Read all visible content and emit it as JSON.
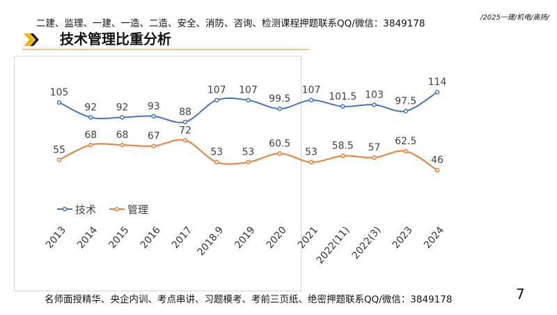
{
  "header": {
    "text": "二建、监理、一建、一造、二造、安全、消防、咨询、检测课程押题联系QQ/微信：3849178",
    "tag": "/2025一建/机电/高扬/"
  },
  "title": "技术管理比重分析",
  "footer": {
    "text": "名师面授精华、央企内训、考点串讲、习题模考、考前三页纸、绝密押题联系QQ/微信：3849178",
    "page_number": "7"
  },
  "chart_data": {
    "type": "line",
    "categories": [
      "2013",
      "2014",
      "2015",
      "2016",
      "2017",
      "2018.9",
      "2019",
      "2020",
      "2021",
      "2022(11)",
      "2022(3)",
      "2023",
      "2024"
    ],
    "series": [
      {
        "name": "技术",
        "color": "#4472c4",
        "values": [
          105,
          92,
          92,
          93,
          88,
          107,
          107,
          99.5,
          107,
          101.5,
          103,
          97.5,
          114
        ]
      },
      {
        "name": "管理",
        "color": "#ed7d31",
        "values": [
          55,
          68,
          68,
          67,
          72,
          53,
          53,
          60.5,
          53,
          58.5,
          57,
          62.5,
          46
        ]
      }
    ],
    "legend": "bottom-left",
    "grid": false,
    "smooth": true
  }
}
